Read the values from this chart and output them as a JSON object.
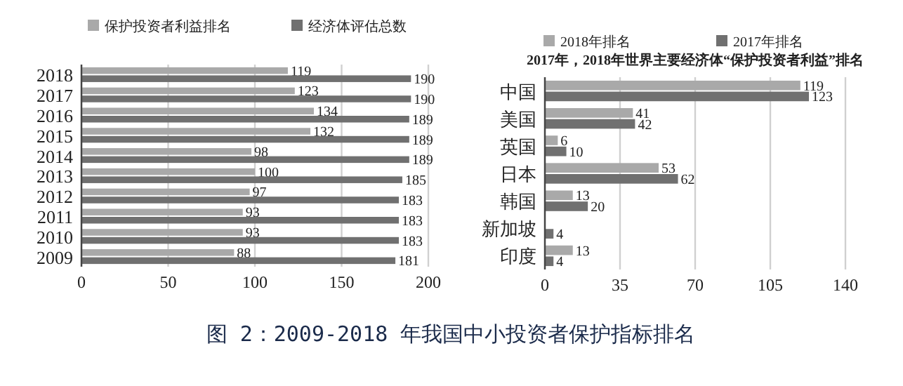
{
  "chart_data": [
    {
      "type": "bar",
      "orientation": "horizontal",
      "categories": [
        "2018",
        "2017",
        "2016",
        "2015",
        "2014",
        "2013",
        "2012",
        "2011",
        "2010",
        "2009"
      ],
      "series": [
        {
          "name": "保护投资者利益排名",
          "color": "#a9a9a9",
          "values": [
            119,
            123,
            134,
            132,
            98,
            100,
            97,
            93,
            93,
            88
          ]
        },
        {
          "name": "经济体评估总数",
          "color": "#707070",
          "values": [
            190,
            190,
            189,
            189,
            189,
            185,
            183,
            183,
            183,
            181
          ]
        }
      ],
      "xlim": [
        0,
        200
      ],
      "xticks": [
        0,
        50,
        100,
        150,
        200
      ],
      "grid": "x",
      "legend": "top",
      "data_labels": true,
      "annotations": [
        "图 2：2009-2018 年我国中小投资者保护指标排名"
      ]
    },
    {
      "type": "bar",
      "orientation": "horizontal",
      "title": "2017年，2018年世界主要经济体“保护投资者利益”排名",
      "categories": [
        "中国",
        "美国",
        "英国",
        "日本",
        "韩国",
        "新加坡",
        "印度"
      ],
      "series": [
        {
          "name": "2018年排名",
          "color": "#a9a9a9",
          "values": [
            119,
            41,
            6,
            53,
            13,
            null,
            13
          ],
          "value_labels": [
            "119",
            "41",
            "6",
            "53",
            "13",
            null,
            "13"
          ]
        },
        {
          "name": "2017年排名",
          "color": "#707070",
          "values": [
            123,
            42,
            10,
            62,
            20,
            4,
            4
          ],
          "value_labels": [
            "123",
            "42",
            "10",
            "62",
            "20",
            "4",
            "4"
          ]
        }
      ],
      "xlim": [
        0,
        140
      ],
      "xticks": [
        0,
        35,
        70,
        105,
        140
      ],
      "grid": "x",
      "legend": "top"
    }
  ]
}
